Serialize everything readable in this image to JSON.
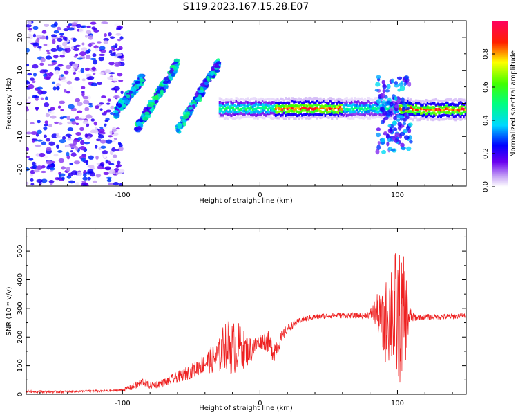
{
  "title": "S119.2023.167.15.28.E07",
  "colors": {
    "snr_line": "#ee2222",
    "axis": "#000000",
    "background": "#ffffff"
  },
  "chart_data": [
    {
      "type": "heatmap",
      "name": "spectrogram",
      "xlabel": "Height of straight line (km)",
      "ylabel": "Frequency (Hz)",
      "xlim": [
        -170,
        150
      ],
      "ylim": [
        -25,
        25
      ],
      "x_ticks": [
        -100,
        0,
        100
      ],
      "x_tick_labels": [
        "-100",
        "0",
        "100"
      ],
      "y_ticks": [
        -20,
        -10,
        0,
        10,
        20
      ],
      "y_tick_labels": [
        "-20",
        "-10",
        "0",
        "10",
        "20"
      ],
      "colorbar": {
        "label": "Normalized spectral amplitude",
        "range": [
          0,
          1
        ],
        "ticks": [
          0.0,
          0.2,
          0.4,
          0.6,
          0.8
        ],
        "tick_labels": [
          "0.0",
          "0.2",
          "0.4",
          "0.6",
          "0.8"
        ]
      },
      "features": [
        {
          "name": "noise-region",
          "x_range": [
            -170,
            -100
          ],
          "freq_range": [
            -25,
            25
          ],
          "amplitude": 0.15
        },
        {
          "name": "streak-1",
          "x_range": [
            -105,
            -85
          ],
          "freq_range": [
            -3,
            8
          ],
          "amplitude": 0.35
        },
        {
          "name": "streak-2",
          "x_range": [
            -90,
            -60
          ],
          "freq_range": [
            -8,
            12
          ],
          "amplitude": 0.4
        },
        {
          "name": "streak-3",
          "x_range": [
            -60,
            -30
          ],
          "freq_range": [
            -8,
            12
          ],
          "amplitude": 0.4
        },
        {
          "name": "main-line",
          "x_range": [
            -30,
            150
          ],
          "freq_range": [
            -3,
            0
          ],
          "amplitude": 0.95
        },
        {
          "name": "burst-100",
          "x_range": [
            85,
            110
          ],
          "freq_range": [
            -15,
            8
          ],
          "amplitude": 0.3
        }
      ]
    },
    {
      "type": "line",
      "name": "snr",
      "xlabel": "Height of straight line (km)",
      "ylabel": "SNR (10 * v/v)",
      "xlim": [
        -170,
        150
      ],
      "ylim": [
        0,
        580
      ],
      "x_ticks": [
        -100,
        0,
        100
      ],
      "x_tick_labels": [
        "-100",
        "0",
        "100"
      ],
      "y_ticks": [
        0,
        100,
        200,
        300,
        400,
        500
      ],
      "y_tick_labels": [
        "0",
        "100",
        "200",
        "300",
        "400",
        "500"
      ],
      "series": [
        {
          "name": "SNR",
          "x": [
            -170,
            -150,
            -130,
            -110,
            -100,
            -90,
            -85,
            -80,
            -70,
            -60,
            -50,
            -40,
            -30,
            -25,
            -20,
            -15,
            -10,
            -5,
            0,
            5,
            10,
            20,
            30,
            40,
            50,
            60,
            70,
            75,
            80,
            85,
            90,
            95,
            100,
            105,
            110,
            115,
            120,
            130,
            140,
            150
          ],
          "values": [
            10,
            8,
            10,
            12,
            15,
            30,
            45,
            30,
            40,
            60,
            80,
            110,
            130,
            180,
            160,
            170,
            150,
            160,
            185,
            190,
            150,
            230,
            260,
            270,
            275,
            275,
            275,
            275,
            280,
            290,
            230,
            300,
            260,
            280,
            270,
            268,
            270,
            270,
            272,
            275
          ],
          "noise_amplitude": [
            4,
            4,
            4,
            4,
            5,
            15,
            15,
            12,
            15,
            20,
            25,
            35,
            60,
            90,
            100,
            80,
            60,
            40,
            25,
            40,
            40,
            15,
            10,
            10,
            10,
            10,
            10,
            10,
            15,
            60,
            120,
            200,
            250,
            200,
            20,
            10,
            10,
            10,
            10,
            10
          ]
        }
      ]
    }
  ]
}
